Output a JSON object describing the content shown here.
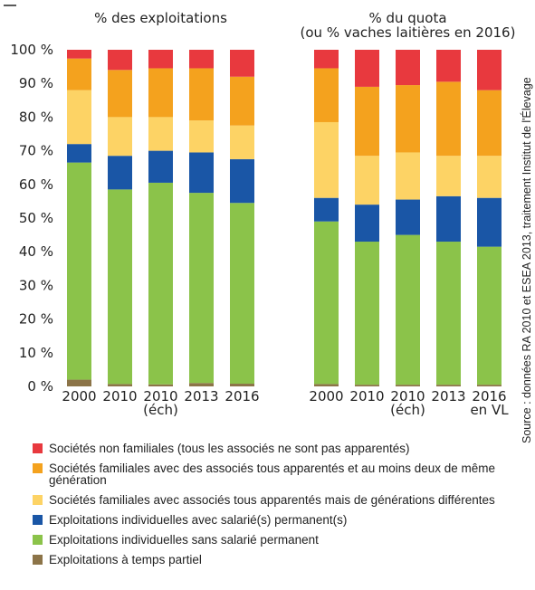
{
  "chart_data": [
    {
      "type": "stacked_bar",
      "title": "% des exploitations",
      "categories": [
        "2000",
        "2010",
        "2010\n(éch)",
        "2013",
        "2016"
      ],
      "ylim": [
        0,
        100
      ],
      "yticks": [
        {
          "value": 0,
          "label": "0 %"
        },
        {
          "value": 10,
          "label": "10 %"
        },
        {
          "value": 20,
          "label": "20 %"
        },
        {
          "value": 30,
          "label": "30 %"
        },
        {
          "value": 40,
          "label": "40 %"
        },
        {
          "value": 50,
          "label": "50 %"
        },
        {
          "value": 60,
          "label": "60 %"
        },
        {
          "value": 70,
          "label": "70 %"
        },
        {
          "value": 80,
          "label": "80 %"
        },
        {
          "value": 90,
          "label": "90 %"
        },
        {
          "value": 100,
          "label": "100 %"
        }
      ],
      "series": [
        {
          "name": "Exploitations à temps partiel",
          "color": "#8c7448",
          "values": [
            2,
            0.7,
            0.6,
            1,
            0.8
          ]
        },
        {
          "name": "Exploitations individuelles sans salarié permanent",
          "color": "#8bc34a",
          "values": [
            64.5,
            57.8,
            59.9,
            56.5,
            53.7
          ]
        },
        {
          "name": "Exploitations individuelles avec salarié(s) permanent(s)",
          "color": "#1a56a6",
          "values": [
            5.5,
            10,
            9.5,
            12,
            13
          ]
        },
        {
          "name": "Sociétés familiales avec associés tous apparentés mais de générations différentes",
          "color": "#fdd365",
          "values": [
            16,
            11.5,
            10,
            9.5,
            10
          ]
        },
        {
          "name": "Sociétés familiales avec des associés tous apparentés et au moins deux de même génération",
          "color": "#f4a21e",
          "values": [
            9.4,
            14,
            14.5,
            15.5,
            14.5
          ]
        },
        {
          "name": "Sociétés non familiales (tous les associés ne sont pas apparentés)",
          "color": "#e8393e",
          "values": [
            2.6,
            6,
            5.5,
            5.5,
            8
          ]
        }
      ]
    },
    {
      "type": "stacked_bar",
      "title": "% du quota\n(ou % vaches laitières en 2016)",
      "categories": [
        "2000",
        "2010",
        "2010\n(éch)",
        "2013",
        "2016\nen VL"
      ],
      "ylim": [
        0,
        100
      ],
      "series": [
        {
          "name": "Exploitations à temps partiel",
          "color": "#8c7448",
          "values": [
            0.7,
            0.5,
            0.5,
            0.5,
            0.5
          ]
        },
        {
          "name": "Exploitations individuelles sans salarié permanent",
          "color": "#8bc34a",
          "values": [
            48.3,
            42.5,
            44.5,
            42.5,
            41
          ]
        },
        {
          "name": "Exploitations individuelles avec salarié(s) permanent(s)",
          "color": "#1a56a6",
          "values": [
            7,
            11,
            10.5,
            13.5,
            14.5
          ]
        },
        {
          "name": "Sociétés familiales avec associés tous apparentés mais de générations différentes",
          "color": "#fdd365",
          "values": [
            22.5,
            14.5,
            14,
            12,
            12.5
          ]
        },
        {
          "name": "Sociétés familiales avec des associés tous apparentés et au moins deux de même génération",
          "color": "#f4a21e",
          "values": [
            16,
            20.5,
            20,
            22,
            19.5
          ]
        },
        {
          "name": "Sociétés non familiales (tous les associés ne sont pas apparentés)",
          "color": "#e8393e",
          "values": [
            5.5,
            11,
            10.5,
            9.5,
            12
          ]
        }
      ]
    }
  ],
  "source": "Source : données RA 2010 et ESEA 2013, traitement Institut de l'Élevage"
}
